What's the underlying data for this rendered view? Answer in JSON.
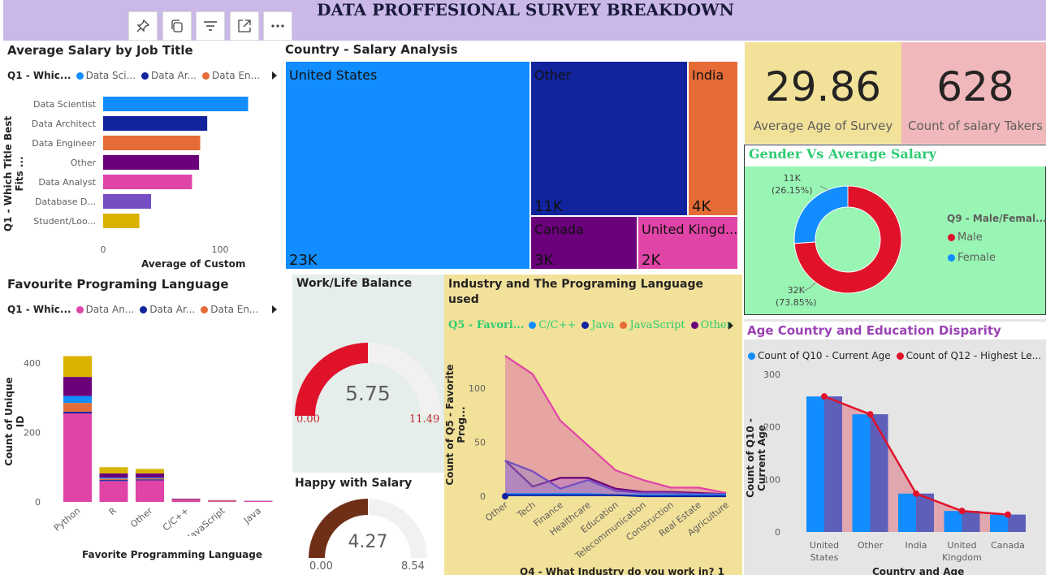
{
  "header": {
    "title": "DATA PROFFESIONAL SURVEY BREAKDOWN",
    "toolbar_icons": [
      "pin-icon",
      "copy-icon",
      "filter-icon",
      "focus-mode-icon",
      "more-options-icon"
    ]
  },
  "salary_by_job": {
    "title": "Average Salary by Job Title",
    "legend_label": "Q1 - Whic...",
    "legend_items": [
      {
        "label": "Data Sci...",
        "color": "#118dff"
      },
      {
        "label": "Data Ar...",
        "color": "#12239e"
      },
      {
        "label": "Data En...",
        "color": "#e66c37"
      }
    ],
    "y_axis_title": "Q1 - Which Title Best Fits ...",
    "x_axis_title": "Average of Custom",
    "chart_data": {
      "type": "bar",
      "orientation": "horizontal",
      "categories": [
        "Data Scientist",
        "Data Architect",
        "Data Engineer",
        "Other",
        "Data Analyst",
        "Database D...",
        "Student/Loo..."
      ],
      "values": [
        124,
        89,
        83,
        82,
        76,
        41,
        31
      ],
      "colors": [
        "#118dff",
        "#12239e",
        "#e66c37",
        "#6b007b",
        "#e044a7",
        "#744ec2",
        "#d9b300"
      ],
      "xlim": [
        0,
        130
      ],
      "x_ticks": [
        "0",
        "100"
      ]
    }
  },
  "country_salary": {
    "title": "Country - Salary Analysis",
    "tiles": [
      {
        "label": "United States",
        "value": "23K",
        "color": "#118dff"
      },
      {
        "label": "Other",
        "value": "11K",
        "color": "#12239e"
      },
      {
        "label": "India",
        "value": "4K",
        "color": "#e66c37"
      },
      {
        "label": "Canada",
        "value": "3K",
        "color": "#6b007b"
      },
      {
        "label": "United Kingd...",
        "value": "2K",
        "color": "#e044a7"
      }
    ]
  },
  "kpis": {
    "avg_age": {
      "value": "29.86",
      "label": "Average Age of Survey"
    },
    "count": {
      "value": "628",
      "label": "Count of salary Takers"
    }
  },
  "gender": {
    "title": "Gender Vs Average Salary",
    "legend_title": "Q9 - Male/Femal...",
    "legend_items": [
      {
        "label": "Male",
        "color": "#e0122a"
      },
      {
        "label": "Female",
        "color": "#118dff"
      }
    ],
    "female_label": "11K",
    "female_pct": "(26.15%)",
    "male_label": "32K",
    "male_pct": "(73.85%)",
    "chart_data": {
      "type": "pie",
      "labels": [
        "Male",
        "Female"
      ],
      "values": [
        73.85,
        26.15
      ],
      "colors": [
        "#e0122a",
        "#118dff"
      ]
    }
  },
  "fav_lang": {
    "title": "Favourite Programing Language",
    "legend_label": "Q1 - Whic...",
    "legend_items": [
      {
        "label": "Data An...",
        "color": "#e044a7"
      },
      {
        "label": "Data Ar...",
        "color": "#12239e"
      },
      {
        "label": "Data En...",
        "color": "#e66c37"
      }
    ],
    "y_axis_title": "Count of Unique ID",
    "x_axis_title": "Favorite Programming Language",
    "chart_data": {
      "type": "bar",
      "stacked": true,
      "categories": [
        "Python",
        "R",
        "Other",
        "C/C++",
        "JavaScript",
        "Java"
      ],
      "series": [
        {
          "name": "Data An...",
          "color": "#e044a7",
          "values": [
            255,
            60,
            62,
            6,
            2,
            2
          ]
        },
        {
          "name": "Data Ar...",
          "color": "#12239e",
          "values": [
            5,
            3,
            3,
            0,
            0,
            0
          ]
        },
        {
          "name": "Data En...",
          "color": "#e66c37",
          "values": [
            25,
            4,
            3,
            1,
            2,
            0
          ]
        },
        {
          "name": "",
          "color": "#118dff",
          "values": [
            20,
            3,
            2,
            0,
            0,
            0
          ]
        },
        {
          "name": "",
          "color": "#6b007b",
          "values": [
            55,
            12,
            12,
            2,
            1,
            1
          ]
        },
        {
          "name": "",
          "color": "#d9b300",
          "values": [
            60,
            18,
            13,
            0,
            0,
            0
          ]
        }
      ],
      "ylim": [
        0,
        450
      ],
      "y_ticks": [
        "0",
        "200",
        "400"
      ]
    }
  },
  "work_life": {
    "title": "Work/Life Balance",
    "value": "5.75",
    "min": "0.00",
    "max": "11.49",
    "fraction": 0.5,
    "color": "#e0122a"
  },
  "happy_salary": {
    "title": "Happy with Salary",
    "value": "4.27",
    "min": "0.00",
    "max": "8.54",
    "fraction": 0.5,
    "color": "#6f2f17"
  },
  "industry_lang": {
    "title_line1": "Industry and The Programing Language",
    "title_line2": "used",
    "legend_label": "Q5 - Favori...",
    "legend_items": [
      {
        "label": "C/C++",
        "color": "#118dff"
      },
      {
        "label": "Java",
        "color": "#12239e"
      },
      {
        "label": "JavaScript",
        "color": "#e66c37"
      },
      {
        "label": "Other",
        "color": "#6b007b"
      }
    ],
    "y_axis_title": "Count of Q5 - Favorite Prog...",
    "x_axis_title": "Q4 - What Industry do you work in? 1",
    "chart_data": {
      "type": "area",
      "categories": [
        "Other",
        "Tech",
        "Finance",
        "Healthcare",
        "Education",
        "Telecommunication",
        "Construction",
        "Real Estate",
        "Agriculture"
      ],
      "series": [
        {
          "name": "",
          "color": "#e044a7",
          "values": [
            130,
            113,
            70,
            47,
            24,
            15,
            8,
            8,
            3
          ]
        },
        {
          "name": "Other",
          "color": "#6b007b",
          "values": [
            33,
            9,
            17,
            17,
            7,
            4,
            4,
            3,
            2
          ]
        },
        {
          "name": "",
          "color": "#744ec2",
          "values": [
            33,
            23,
            7,
            15,
            5,
            3,
            3,
            2,
            2
          ]
        },
        {
          "name": "C/C++",
          "color": "#118dff",
          "values": [
            2,
            2,
            2,
            2,
            1,
            1,
            1,
            1,
            1
          ]
        },
        {
          "name": "Java",
          "color": "#12239e",
          "values": [
            1,
            1,
            1,
            1,
            1,
            0,
            0,
            0,
            0
          ]
        }
      ],
      "ylim": [
        0,
        140
      ],
      "y_ticks": [
        "0",
        "50",
        "100"
      ]
    }
  },
  "age_country": {
    "title": "Age Country and Education Disparity",
    "legend_items": [
      {
        "label": "Count of Q10 - Current Age",
        "color": "#118dff"
      },
      {
        "label": "Count of Q12 - Highest Le...",
        "color": "#e0122a"
      }
    ],
    "y_axis_title": "Count of Q10 - Current Age",
    "x_axis_title": "Country and Age",
    "chart_data": {
      "type": "bar",
      "categories": [
        "United States",
        "Other",
        "India",
        "United Kingdom",
        "Canada"
      ],
      "series": [
        {
          "name": "Count of Q10 - Current Age",
          "color": "#118dff",
          "values": [
            258,
            224,
            73,
            40,
            33
          ]
        },
        {
          "name": "Count of Q12 - Highest Le...",
          "color": "#e0122a",
          "type": "line",
          "values": [
            258,
            224,
            73,
            40,
            33
          ]
        }
      ],
      "ylim": [
        0,
        300
      ],
      "y_ticks": [
        "0",
        "100",
        "200",
        "300"
      ]
    }
  }
}
